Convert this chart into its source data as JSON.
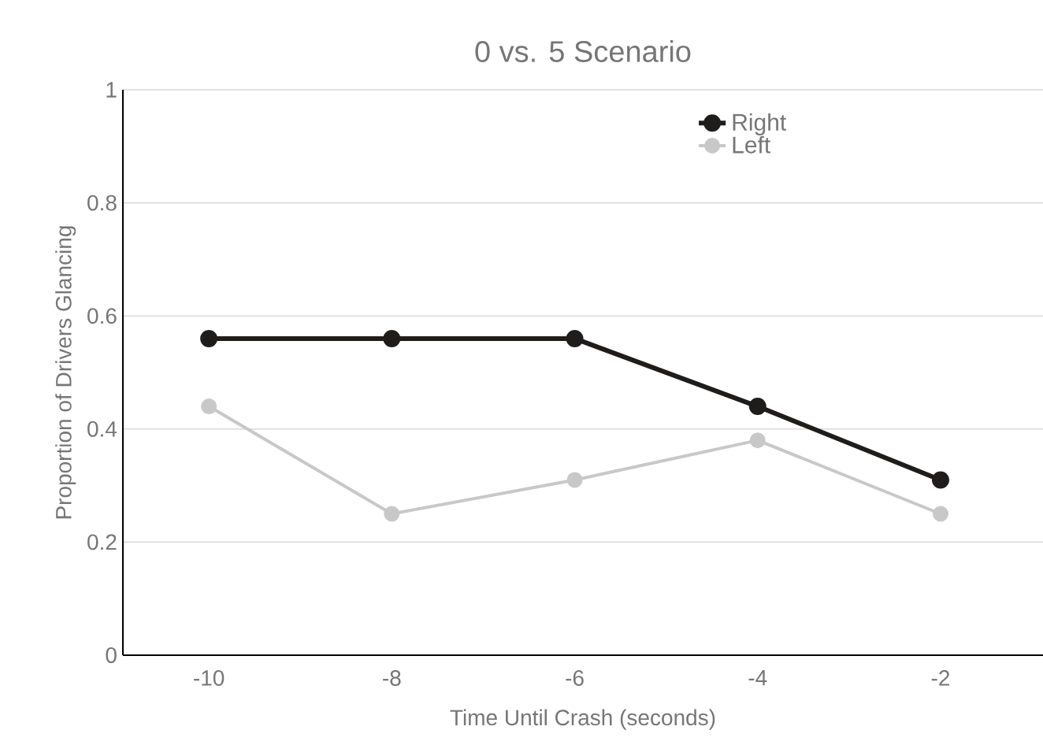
{
  "chart_data": {
    "type": "line",
    "title": "0 vs. 5 Scenario",
    "xlabel": "Time Until Crash (seconds)",
    "ylabel": "Proportion of Drivers Glancing",
    "categories": [
      "-10",
      "-8",
      "-6",
      "-4",
      "-2"
    ],
    "series": [
      {
        "name": "Right",
        "color": "#1f1c1c",
        "values": [
          0.56,
          0.56,
          0.56,
          0.44,
          0.31
        ]
      },
      {
        "name": "Left",
        "color": "#c8c8c8",
        "values": [
          0.44,
          0.25,
          0.31,
          0.38,
          0.25
        ]
      }
    ],
    "ylim": [
      0,
      1
    ],
    "yticks": [
      0,
      0.2,
      0.4,
      0.6,
      0.8,
      1
    ],
    "grid": "y",
    "legend": "top right",
    "marker": "circle",
    "line_style": "solid"
  }
}
